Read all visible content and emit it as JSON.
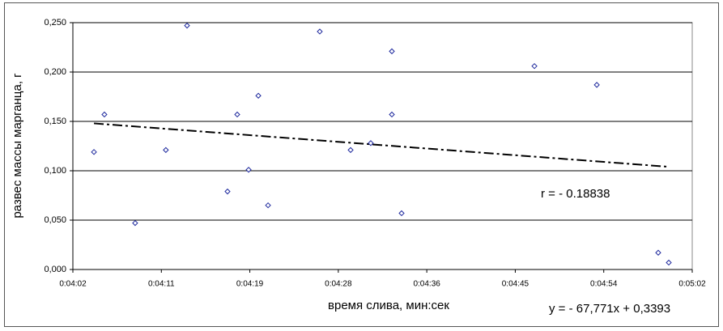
{
  "chart_data": {
    "type": "scatter",
    "x_label": "время слива, мин:сек",
    "y_label": "развес массы марганца, г",
    "annotations": [
      "r = - 0.18838",
      "y = - 67,771x + 0,3393"
    ],
    "color": "#1f2a9e",
    "x": [
      243.98,
      245.0,
      248.0,
      251.0,
      253.07,
      257.02,
      257.97,
      259.08,
      260.03,
      260.98,
      266.03,
      269.04,
      271.01,
      273.07,
      273.07,
      274.02,
      286.99,
      293.08,
      299.08,
      300.11
    ],
    "values": [
      0.119,
      0.157,
      0.047,
      0.121,
      0.247,
      0.079,
      0.157,
      0.101,
      0.176,
      0.065,
      0.241,
      0.121,
      0.128,
      0.221,
      0.157,
      0.057,
      0.206,
      0.187,
      0.017,
      0.007
    ],
    "trendline": {
      "x": [
        243.98,
        300.11
      ],
      "y": [
        0.148,
        0.104
      ]
    },
    "xlim": [
      241.92,
      302.4
    ],
    "xticks": [
      {
        "value": 241.92,
        "label": "0:04:02"
      },
      {
        "value": 250.56,
        "label": "0:04:11"
      },
      {
        "value": 259.2,
        "label": "0:04:19"
      },
      {
        "value": 267.84,
        "label": "0:04:28"
      },
      {
        "value": 276.48,
        "label": "0:04:36"
      },
      {
        "value": 285.12,
        "label": "0:04:45"
      },
      {
        "value": 293.76,
        "label": "0:04:54"
      },
      {
        "value": 302.4,
        "label": "0:05:02"
      }
    ],
    "ylim": [
      0,
      0.25
    ],
    "yticks": [
      {
        "value": 0,
        "label": "0,000"
      },
      {
        "value": 0.05,
        "label": "0,050"
      },
      {
        "value": 0.1,
        "label": "0,100"
      },
      {
        "value": 0.15,
        "label": "0,150"
      },
      {
        "value": 0.2,
        "label": "0,200"
      },
      {
        "value": 0.25,
        "label": "0,250"
      }
    ],
    "grid": true
  }
}
